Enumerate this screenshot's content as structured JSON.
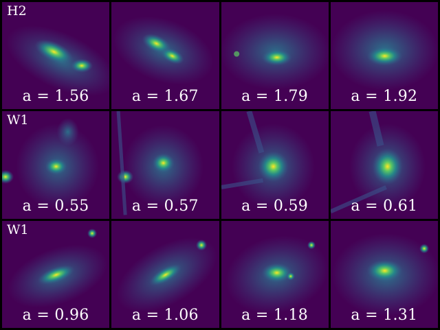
{
  "colors": {
    "background": "#440154",
    "frame": "#000000",
    "text": "#ffffff",
    "halo_outer": "#3b528b",
    "halo_mid": "#21918c",
    "halo_inner": "#5ec962",
    "core": "#fde725"
  },
  "rows": [
    {
      "label": "H2",
      "panels": [
        {
          "caption": "a = 1.56"
        },
        {
          "caption": "a = 1.67"
        },
        {
          "caption": "a = 1.79"
        },
        {
          "caption": "a = 1.92"
        }
      ]
    },
    {
      "label": "W1",
      "panels": [
        {
          "caption": "a = 0.55"
        },
        {
          "caption": "a = 0.57"
        },
        {
          "caption": "a = 0.59"
        },
        {
          "caption": "a = 0.61"
        }
      ]
    },
    {
      "label": "W1",
      "panels": [
        {
          "caption": "a = 0.96"
        },
        {
          "caption": "a = 1.06"
        },
        {
          "caption": "a = 1.18"
        },
        {
          "caption": "a = 1.31"
        }
      ]
    }
  ]
}
